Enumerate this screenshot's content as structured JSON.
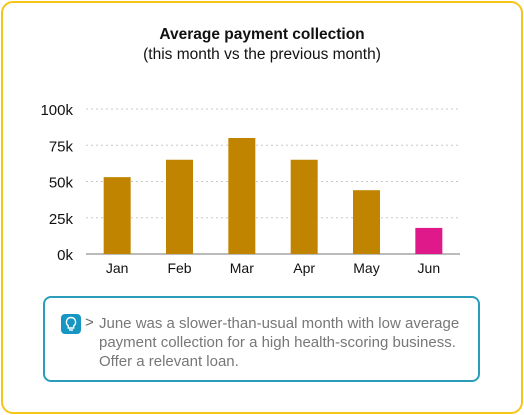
{
  "chart_data": {
    "type": "bar",
    "title": "Average payment collection",
    "subtitle": "(this month vs the previous month)",
    "categories": [
      "Jan",
      "Feb",
      "Mar",
      "Apr",
      "May",
      "Jun"
    ],
    "values": [
      53000,
      65000,
      80000,
      65000,
      44000,
      18000
    ],
    "ylim": [
      0,
      100000
    ],
    "y_ticks": [
      0,
      25000,
      50000,
      75000,
      100000
    ],
    "y_tick_labels": [
      "0k",
      "25k",
      "50k",
      "75k",
      "100k"
    ],
    "grid": "horizontal dotted",
    "bar_color": "#c08400",
    "highlight_color": "#e0198a",
    "highlight_index": 5
  },
  "insight": {
    "icon": "lightbulb-icon",
    "arrow": ">",
    "text": "June was a slower-than-usual month with low average payment collection for a high health-scoring business. Offer a relevant loan."
  },
  "colors": {
    "border": "#f5c518",
    "accent": "#1696c2"
  }
}
